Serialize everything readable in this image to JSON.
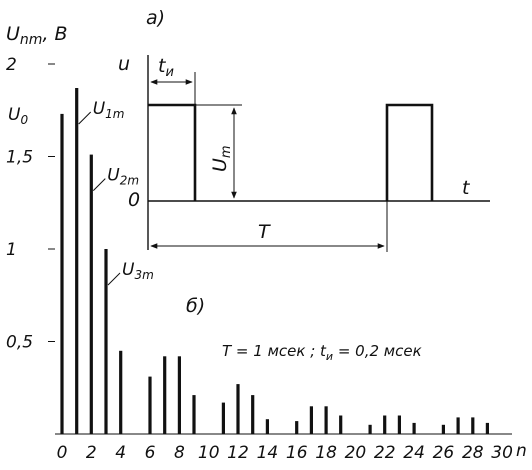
{
  "chart_data": [
    {
      "type": "bar",
      "panel_label": "б)",
      "ylabel": "U",
      "ylabel_sub": "nm",
      "ylabel_unit": ", В",
      "xlabel": "n",
      "ylim": [
        0,
        2
      ],
      "xlim": [
        0,
        31
      ],
      "yticks": [
        {
          "value": 0.5,
          "label": "0,5"
        },
        {
          "value": 1,
          "label": "1"
        },
        {
          "value": 1.5,
          "label": "1,5"
        },
        {
          "value": 2,
          "label": "2"
        }
      ],
      "xticks": [
        0,
        2,
        4,
        6,
        8,
        10,
        12,
        14,
        16,
        18,
        20,
        22,
        24,
        26,
        28,
        30
      ],
      "x": [
        0,
        1,
        2,
        3,
        4,
        6,
        7,
        8,
        9,
        11,
        12,
        13,
        14,
        16,
        17,
        18,
        19,
        21,
        22,
        23,
        24,
        26,
        27,
        28,
        29
      ],
      "values": [
        1.73,
        1.87,
        1.51,
        1.0,
        0.45,
        0.31,
        0.42,
        0.42,
        0.21,
        0.17,
        0.27,
        0.21,
        0.08,
        0.07,
        0.15,
        0.15,
        0.1,
        0.05,
        0.1,
        0.1,
        0.06,
        0.05,
        0.09,
        0.09,
        0.06
      ],
      "u0": {
        "label": "U",
        "sub": "0",
        "value": 1.73
      },
      "annotations": [
        {
          "label": "U",
          "sub": "1m",
          "x": 1,
          "value": 1.87
        },
        {
          "label": "U",
          "sub": "2m",
          "x": 2,
          "value": 1.51
        },
        {
          "label": "U",
          "sub": "3m",
          "x": 3,
          "value": 1.0
        }
      ],
      "caption": "T = 1 мсек ;  t",
      "caption_sub": "и",
      "caption_tail": " = 0,2 мсек"
    },
    {
      "type": "line",
      "panel_label": "а)",
      "ylabel": "u",
      "xlabel": "t",
      "origin_label": "0",
      "period_label": "T",
      "amplitude_label": "U",
      "amplitude_sub": "m",
      "width_label": "t",
      "width_sub": "и",
      "period": 1,
      "pulse_width": 0.2,
      "amplitude": 1
    }
  ]
}
